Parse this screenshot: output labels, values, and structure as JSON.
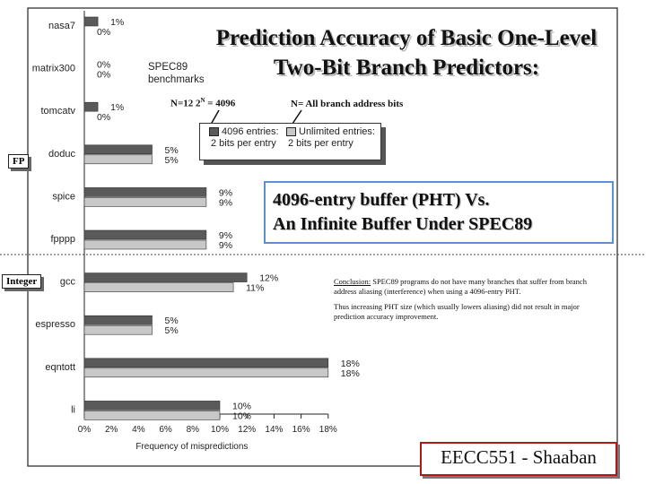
{
  "chart_data": {
    "type": "bar",
    "orientation": "horizontal",
    "title": "Prediction Accuracy of Basic One-Level Two-Bit Branch Predictors:",
    "subtitle": "SPEC89 benchmarks",
    "xlabel": "Frequency of mispredictions",
    "ylabel": "",
    "xlim": [
      0,
      18
    ],
    "xticks": [
      "0%",
      "2%",
      "4%",
      "6%",
      "8%",
      "10%",
      "12%",
      "14%",
      "16%",
      "18%"
    ],
    "categories": [
      "nasa7",
      "matrix300",
      "tomcatv",
      "doduc",
      "spice",
      "fpppp",
      "gcc",
      "espresso",
      "eqntott",
      "li"
    ],
    "series": [
      {
        "name": "4096 entries: 2 bits per entry",
        "color": "#5a5a5a",
        "values": [
          1,
          0,
          1,
          5,
          9,
          9,
          12,
          5,
          18,
          10
        ]
      },
      {
        "name": "Unlimited entries: 2 bits per entry",
        "color": "#c8c8c8",
        "values": [
          0,
          0,
          0,
          5,
          9,
          9,
          11,
          5,
          18,
          10
        ]
      }
    ],
    "value_labels": [
      [
        "1%",
        "0%"
      ],
      [
        "0%",
        "0%"
      ],
      [
        "1%",
        "0%"
      ],
      [
        "5%",
        "5%"
      ],
      [
        "9%",
        "9%"
      ],
      [
        "9%",
        "9%"
      ],
      [
        "12%",
        "11%"
      ],
      [
        "5%",
        "5%"
      ],
      [
        "18%",
        "18%"
      ],
      [
        "10%",
        "10%"
      ]
    ],
    "legend_position": "top-right"
  },
  "legend": {
    "item1_line1": "4096 entries:",
    "item1_line2": "2 bits per entry",
    "item2_line1": "Unlimited entries:",
    "item2_line2": "2 bits per entry"
  },
  "notes": {
    "n12": "N=12  2",
    "n12_sup": "N",
    "n12_rest": " = 4096",
    "nall": "N= All branch address bits"
  },
  "sections": {
    "fp": "FP",
    "integer": "Integer"
  },
  "callout": {
    "line1": "4096-entry buffer (PHT) Vs.",
    "line2": "An Infinite Buffer Under SPEC89"
  },
  "conclusion": {
    "label": "Conclusion:",
    "text1": " SPEC89 programs do not have many branches that suffer from branch address aliasing (interference) when using a 4096-entry PHT.",
    "text2": "Thus increasing PHT size (which usually lowers aliasing) did not result in major prediction accuracy improvement."
  },
  "footer": "EECC551 - Shaaban"
}
